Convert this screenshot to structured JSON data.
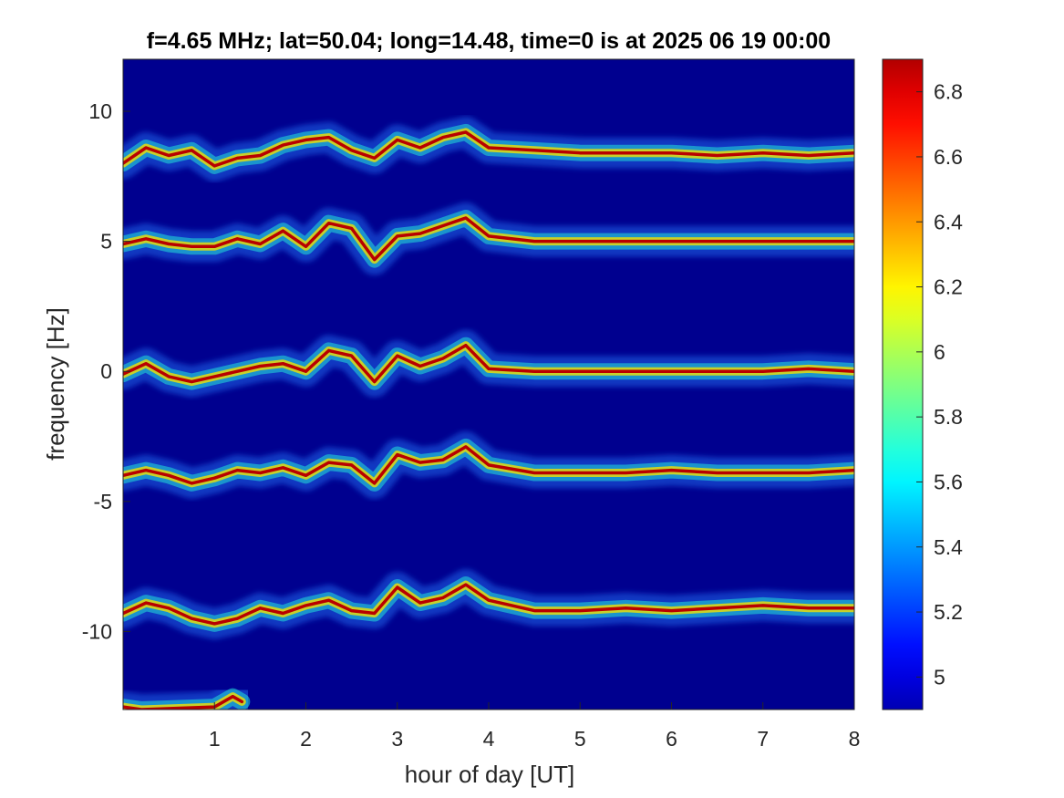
{
  "chart_data": {
    "type": "heatmap",
    "title": "f=4.65 MHz;  lat=50.04; long=14.48, time=0 is at 2025 06 19 00:00",
    "xlabel": "hour of day [UT]",
    "ylabel": "frequency [Hz]",
    "xlim": [
      0,
      8
    ],
    "ylim": [
      -13,
      12
    ],
    "xticks": [
      1,
      2,
      3,
      4,
      5,
      6,
      7,
      8
    ],
    "yticks": [
      10,
      5,
      0,
      -5,
      -10
    ],
    "colormap": "jet",
    "clim": [
      4.9,
      6.9
    ],
    "colorbar_ticks": [
      5,
      5.2,
      5.4,
      5.6,
      5.8,
      6,
      6.2,
      6.4,
      6.6,
      6.8
    ],
    "background_color": "#00008f",
    "traces": [
      {
        "name": "",
        "x": [
          0,
          0.25,
          0.5,
          0.75,
          1.0,
          1.25,
          1.5,
          1.75,
          2.0,
          2.25,
          2.5,
          2.75,
          3.0,
          3.25,
          3.5,
          3.75,
          4.0,
          4.5,
          5.0,
          5.5,
          6.0,
          6.5,
          7.0,
          7.5,
          8.0
        ],
        "y": [
          8.0,
          8.6,
          8.3,
          8.5,
          7.9,
          8.2,
          8.3,
          8.7,
          8.9,
          9.0,
          8.5,
          8.2,
          8.9,
          8.6,
          9.0,
          9.2,
          8.6,
          8.5,
          8.4,
          8.4,
          8.4,
          8.3,
          8.4,
          8.3,
          8.4
        ]
      },
      {
        "name": "",
        "x": [
          0,
          0.25,
          0.5,
          0.75,
          1.0,
          1.25,
          1.5,
          1.75,
          2.0,
          2.25,
          2.5,
          2.75,
          3.0,
          3.25,
          3.5,
          3.75,
          4.0,
          4.5,
          5.0,
          5.5,
          6.0,
          6.5,
          7.0,
          7.5,
          8.0
        ],
        "y": [
          4.9,
          5.1,
          4.9,
          4.8,
          4.8,
          5.1,
          4.9,
          5.4,
          4.8,
          5.7,
          5.5,
          4.3,
          5.2,
          5.3,
          5.6,
          5.9,
          5.2,
          5.0,
          5.0,
          5.0,
          5.0,
          5.0,
          5.0,
          5.0,
          5.0
        ]
      },
      {
        "name": "",
        "x": [
          0,
          0.25,
          0.5,
          0.75,
          1.0,
          1.25,
          1.5,
          1.75,
          2.0,
          2.25,
          2.5,
          2.75,
          3.0,
          3.25,
          3.5,
          3.75,
          4.0,
          4.5,
          5.0,
          5.5,
          6.0,
          6.5,
          7.0,
          7.5,
          8.0
        ],
        "y": [
          -0.1,
          0.3,
          -0.2,
          -0.4,
          -0.2,
          0.0,
          0.2,
          0.3,
          0.0,
          0.8,
          0.6,
          -0.4,
          0.6,
          0.2,
          0.5,
          1.0,
          0.1,
          0.0,
          0.0,
          0.0,
          0.0,
          0.0,
          0.0,
          0.1,
          0.0
        ]
      },
      {
        "name": "",
        "x": [
          0,
          0.25,
          0.5,
          0.75,
          1.0,
          1.25,
          1.5,
          1.75,
          2.0,
          2.25,
          2.5,
          2.75,
          3.0,
          3.25,
          3.5,
          3.75,
          4.0,
          4.5,
          5.0,
          5.5,
          6.0,
          6.5,
          7.0,
          7.5,
          8.0
        ],
        "y": [
          -4.0,
          -3.8,
          -4.0,
          -4.3,
          -4.1,
          -3.8,
          -3.9,
          -3.7,
          -4.0,
          -3.5,
          -3.6,
          -4.3,
          -3.2,
          -3.5,
          -3.4,
          -2.9,
          -3.6,
          -3.9,
          -3.9,
          -3.9,
          -3.8,
          -3.9,
          -3.9,
          -3.9,
          -3.8
        ]
      },
      {
        "name": "",
        "x": [
          0,
          0.25,
          0.5,
          0.75,
          1.0,
          1.25,
          1.5,
          1.75,
          2.0,
          2.25,
          2.5,
          2.75,
          3.0,
          3.25,
          3.5,
          3.75,
          4.0,
          4.5,
          5.0,
          5.5,
          6.0,
          6.5,
          7.0,
          7.5,
          8.0
        ],
        "y": [
          -9.3,
          -8.9,
          -9.1,
          -9.5,
          -9.7,
          -9.5,
          -9.1,
          -9.3,
          -9.0,
          -8.8,
          -9.2,
          -9.3,
          -8.3,
          -8.9,
          -8.7,
          -8.2,
          -8.8,
          -9.2,
          -9.2,
          -9.1,
          -9.2,
          -9.1,
          -9.0,
          -9.1,
          -9.1
        ]
      },
      {
        "name": "",
        "x": [
          0.0,
          0.2,
          1.0,
          1.2,
          1.3
        ],
        "y": [
          -12.9,
          -13.0,
          -12.9,
          -12.5,
          -12.7
        ]
      }
    ]
  }
}
